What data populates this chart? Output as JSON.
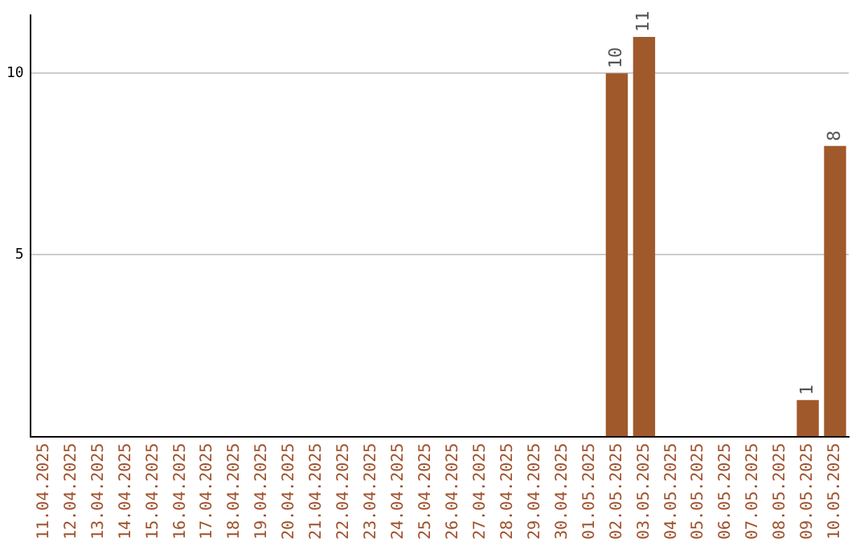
{
  "chart_data": {
    "type": "bar",
    "categories": [
      "11.04.2025",
      "12.04.2025",
      "13.04.2025",
      "14.04.2025",
      "15.04.2025",
      "16.04.2025",
      "17.04.2025",
      "18.04.2025",
      "19.04.2025",
      "20.04.2025",
      "21.04.2025",
      "22.04.2025",
      "23.04.2025",
      "24.04.2025",
      "25.04.2025",
      "26.04.2025",
      "27.04.2025",
      "28.04.2025",
      "29.04.2025",
      "30.04.2025",
      "01.05.2025",
      "02.05.2025",
      "03.05.2025",
      "04.05.2025",
      "05.05.2025",
      "06.05.2025",
      "07.05.2025",
      "08.05.2025",
      "09.05.2025",
      "10.05.2025"
    ],
    "values": [
      0,
      0,
      0,
      0,
      0,
      0,
      0,
      0,
      0,
      0,
      0,
      0,
      0,
      0,
      0,
      0,
      0,
      0,
      0,
      0,
      0,
      10,
      11,
      0,
      0,
      0,
      0,
      0,
      1,
      8
    ],
    "value_labels": [
      null,
      null,
      null,
      null,
      null,
      null,
      null,
      null,
      null,
      null,
      null,
      null,
      null,
      null,
      null,
      null,
      null,
      null,
      null,
      null,
      null,
      "10",
      "11",
      null,
      null,
      null,
      null,
      null,
      "1",
      "8"
    ],
    "color": "#a0592b",
    "ylim": [
      0,
      11.6
    ],
    "yticks": [
      5,
      10
    ],
    "grid": "y",
    "legend": false
  }
}
